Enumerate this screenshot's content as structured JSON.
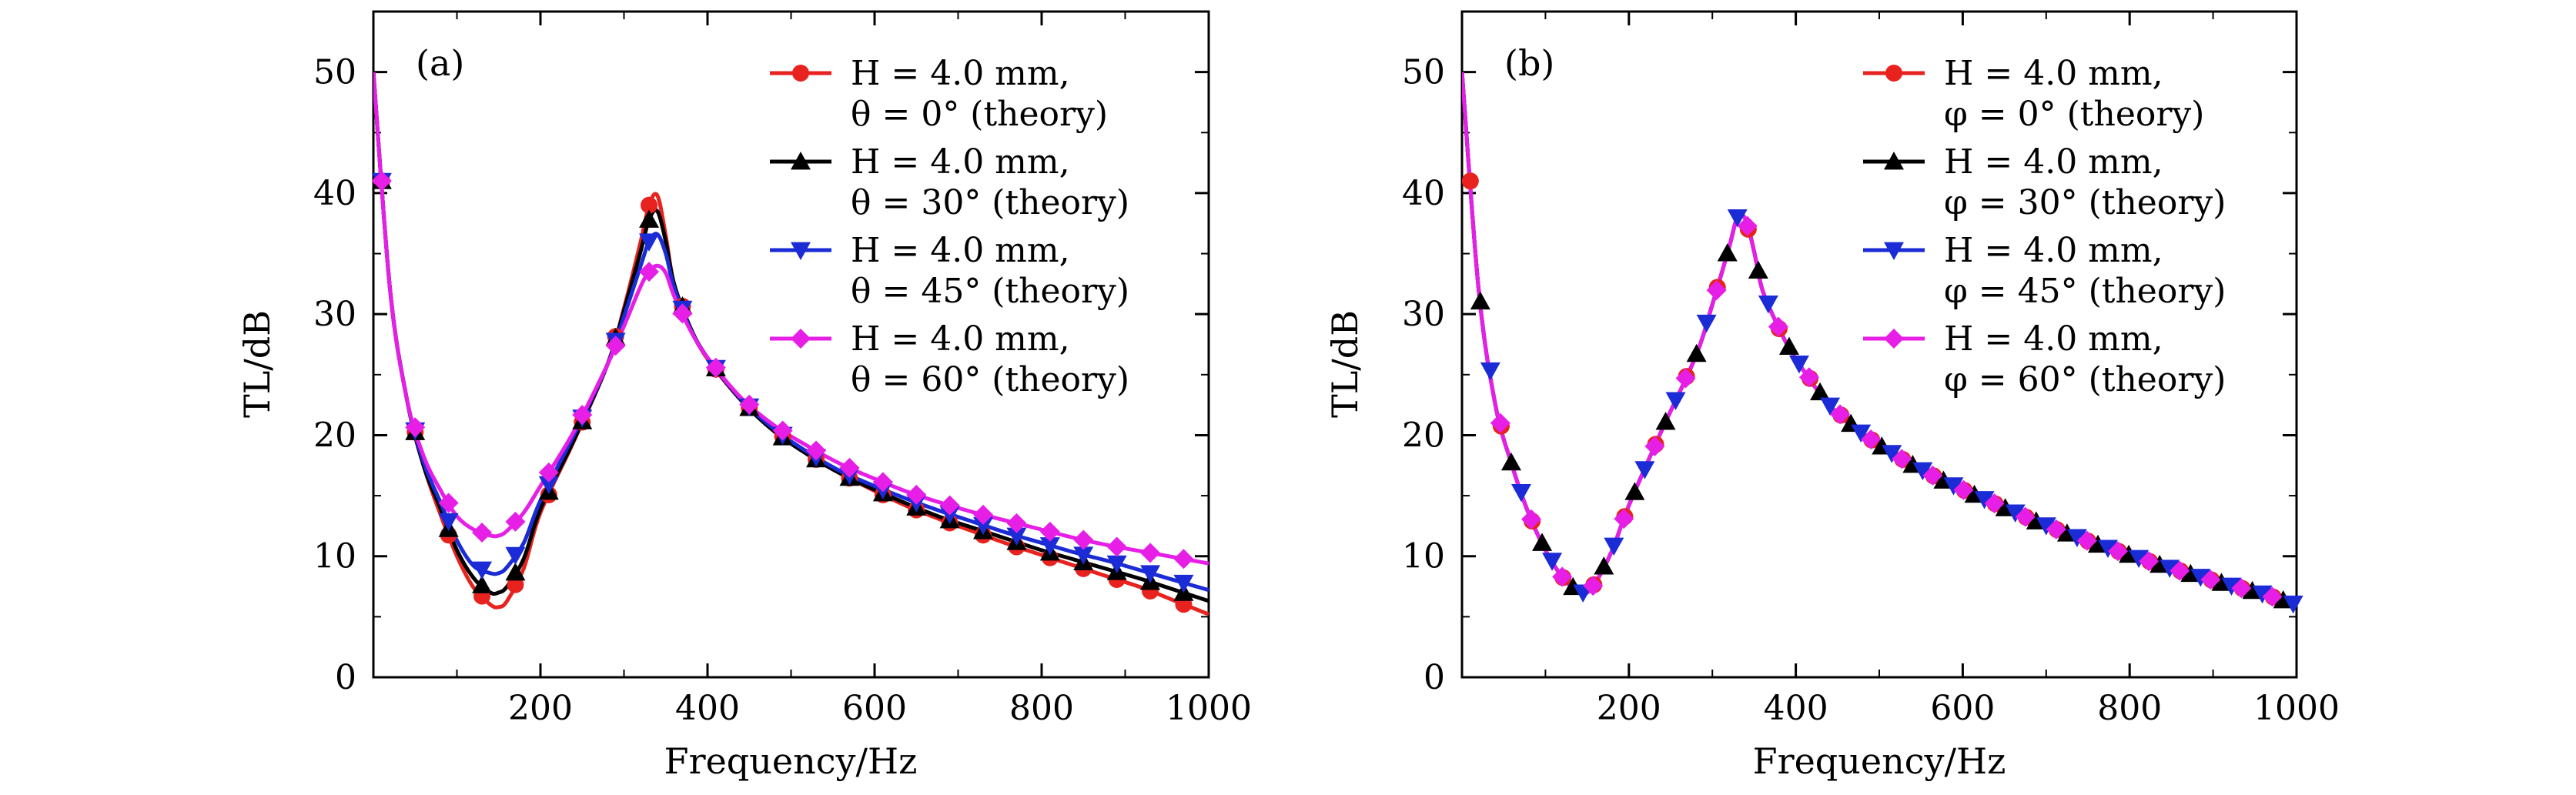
{
  "chart_data": [
    {
      "type": "line",
      "panel_label": "(a)",
      "xlabel": "Frequency/Hz",
      "ylabel": "TL/dB",
      "xlim": [
        0,
        1000
      ],
      "ylim": [
        0,
        55
      ],
      "xticks": [
        200,
        400,
        600,
        800,
        1000
      ],
      "yticks": [
        0,
        10,
        20,
        30,
        40,
        50
      ],
      "grid": false,
      "legend_position": "top-right",
      "series": [
        {
          "name_line1": "H = 4.0 mm,",
          "name_line2": "θ = 0° (theory)",
          "color": "#e8221e",
          "marker": "circle",
          "x": [
            0,
            20,
            40,
            60,
            80,
            100,
            120,
            140,
            150,
            160,
            180,
            200,
            240,
            280,
            300,
            320,
            330,
            340,
            350,
            360,
            380,
            400,
            440,
            480,
            520,
            560,
            600,
            640,
            680,
            720,
            760,
            800,
            840,
            880,
            920,
            960,
            1000
          ],
          "y": [
            50,
            32,
            23,
            17.5,
            13.5,
            10,
            7.4,
            6.0,
            5.8,
            6.3,
            9.0,
            13.6,
            19.5,
            25.8,
            30.5,
            36,
            39,
            39.8,
            36.5,
            32.5,
            28.8,
            26.3,
            22.9,
            20.4,
            18.4,
            16.8,
            15.4,
            14.1,
            13.0,
            12.0,
            11.0,
            10.1,
            9.2,
            8.3,
            7.4,
            6.3,
            5.2
          ]
        },
        {
          "name_line1": "H = 4.0 mm,",
          "name_line2": "θ = 30° (theory)",
          "color": "#000000",
          "marker": "triangle-up",
          "x": [
            0,
            20,
            40,
            60,
            80,
            100,
            120,
            140,
            150,
            160,
            180,
            200,
            240,
            280,
            300,
            320,
            330,
            340,
            350,
            360,
            380,
            400,
            440,
            480,
            520,
            560,
            600,
            640,
            680,
            720,
            760,
            800,
            840,
            880,
            920,
            960,
            1000
          ],
          "y": [
            50,
            32,
            23,
            17.5,
            14,
            10.5,
            8.2,
            7.0,
            7.0,
            7.5,
            9.8,
            13.9,
            19.6,
            25.8,
            30.3,
            35.2,
            37.8,
            38.5,
            36,
            32.5,
            28.8,
            26.4,
            22.9,
            20.3,
            18.4,
            16.8,
            15.5,
            14.3,
            13.2,
            12.3,
            11.4,
            10.5,
            9.7,
            8.9,
            8.1,
            7.2,
            6.3
          ]
        },
        {
          "name_line1": "H = 4.0 mm,",
          "name_line2": "θ = 45° (theory)",
          "color": "#1b2bd6",
          "marker": "triangle-down",
          "x": [
            0,
            20,
            40,
            60,
            80,
            100,
            120,
            140,
            150,
            160,
            180,
            200,
            240,
            280,
            300,
            320,
            330,
            340,
            350,
            360,
            380,
            400,
            440,
            480,
            520,
            560,
            600,
            640,
            680,
            720,
            760,
            800,
            840,
            880,
            920,
            960,
            1000
          ],
          "y": [
            50,
            32,
            23,
            17.8,
            14.5,
            11.3,
            9.2,
            8.6,
            8.6,
            9.1,
            11.1,
            14.6,
            20.0,
            25.8,
            29.8,
            34,
            36,
            36.6,
            35,
            32.2,
            28.7,
            26.4,
            23.0,
            20.5,
            18.6,
            17.0,
            15.8,
            14.7,
            13.7,
            12.8,
            11.9,
            11.1,
            10.3,
            9.6,
            8.8,
            8.0,
            7.2
          ]
        },
        {
          "name_line1": "H = 4.0 mm,",
          "name_line2": "θ = 60° (theory)",
          "color": "#e61ee6",
          "marker": "diamond",
          "x": [
            0,
            20,
            40,
            60,
            80,
            100,
            120,
            140,
            150,
            160,
            180,
            200,
            240,
            280,
            300,
            320,
            330,
            340,
            350,
            360,
            380,
            400,
            440,
            480,
            520,
            560,
            600,
            640,
            680,
            720,
            760,
            800,
            840,
            880,
            920,
            960,
            1000
          ],
          "y": [
            50,
            32,
            23,
            18.3,
            15.5,
            13.3,
            12.2,
            11.7,
            11.7,
            12.1,
            13.6,
            15.8,
            20.3,
            25.8,
            29.0,
            32.3,
            33.5,
            34.0,
            33.4,
            31.5,
            28.6,
            26.4,
            23.1,
            20.8,
            19.1,
            17.6,
            16.4,
            15.3,
            14.4,
            13.6,
            12.9,
            12.2,
            11.5,
            10.9,
            10.4,
            9.9,
            9.4
          ]
        }
      ]
    },
    {
      "type": "line",
      "panel_label": "(b)",
      "xlabel": "Frequency/Hz",
      "ylabel": "TL/dB",
      "xlim": [
        0,
        1000
      ],
      "ylim": [
        0,
        55
      ],
      "xticks": [
        200,
        400,
        600,
        800,
        1000
      ],
      "yticks": [
        0,
        10,
        20,
        30,
        40,
        50
      ],
      "grid": false,
      "legend_position": "top-right",
      "series": [
        {
          "name_line1": "H = 4.0 mm,",
          "name_line2": "φ = 0° (theory)",
          "color": "#e8221e",
          "marker": "circle",
          "x": [
            0,
            20,
            40,
            60,
            80,
            100,
            120,
            140,
            150,
            160,
            180,
            200,
            240,
            280,
            300,
            320,
            330,
            340,
            350,
            360,
            380,
            400,
            440,
            480,
            520,
            560,
            600,
            640,
            680,
            720,
            760,
            800,
            840,
            880,
            920,
            960,
            1000
          ],
          "y": [
            50,
            32,
            22.5,
            17.5,
            13.5,
            10.5,
            8.3,
            7.0,
            7.0,
            7.8,
            10.5,
            14.2,
            20.5,
            26.5,
            30.8,
            35.5,
            38,
            37.8,
            35.2,
            32,
            28.8,
            26.3,
            22.5,
            20.1,
            18.3,
            16.8,
            15.5,
            14.3,
            13.1,
            12.0,
            11.0,
            10.1,
            9.2,
            8.4,
            7.6,
            6.9,
            6.0
          ]
        },
        {
          "name_line1": "H = 4.0 mm,",
          "name_line2": "φ = 30° (theory)",
          "color": "#000000",
          "marker": "triangle-up",
          "x": [
            0,
            20,
            40,
            60,
            80,
            100,
            120,
            140,
            150,
            160,
            180,
            200,
            240,
            280,
            300,
            320,
            330,
            340,
            350,
            360,
            380,
            400,
            440,
            480,
            520,
            560,
            600,
            640,
            680,
            720,
            760,
            800,
            840,
            880,
            920,
            960,
            1000
          ],
          "y": [
            50,
            32,
            22.5,
            17.5,
            13.5,
            10.5,
            8.3,
            7.0,
            7.0,
            7.8,
            10.5,
            14.2,
            20.5,
            26.5,
            30.8,
            35.5,
            38,
            37.8,
            35.2,
            32,
            28.8,
            26.3,
            22.5,
            20.1,
            18.3,
            16.8,
            15.5,
            14.3,
            13.1,
            12.0,
            11.0,
            10.1,
            9.2,
            8.4,
            7.6,
            6.9,
            6.0
          ]
        },
        {
          "name_line1": "H = 4.0 mm,",
          "name_line2": "φ = 45° (theory)",
          "color": "#1b2bd6",
          "marker": "triangle-down",
          "x": [
            0,
            20,
            40,
            60,
            80,
            100,
            120,
            140,
            150,
            160,
            180,
            200,
            240,
            280,
            300,
            320,
            330,
            340,
            350,
            360,
            380,
            400,
            440,
            480,
            520,
            560,
            600,
            640,
            680,
            720,
            760,
            800,
            840,
            880,
            920,
            960,
            1000
          ],
          "y": [
            50,
            32,
            22.5,
            17.5,
            13.5,
            10.5,
            8.3,
            7.0,
            7.0,
            7.8,
            10.5,
            14.2,
            20.5,
            26.5,
            30.8,
            35.5,
            38,
            37.8,
            35.2,
            32,
            28.8,
            26.3,
            22.5,
            20.1,
            18.3,
            16.8,
            15.5,
            14.3,
            13.1,
            12.0,
            11.0,
            10.1,
            9.2,
            8.4,
            7.6,
            6.9,
            6.0
          ]
        },
        {
          "name_line1": "H = 4.0 mm,",
          "name_line2": "φ = 60° (theory)",
          "color": "#e61ee6",
          "marker": "diamond",
          "x": [
            0,
            20,
            40,
            60,
            80,
            100,
            120,
            140,
            150,
            160,
            180,
            200,
            240,
            280,
            300,
            320,
            330,
            340,
            350,
            360,
            380,
            400,
            440,
            480,
            520,
            560,
            600,
            640,
            680,
            720,
            760,
            800,
            840,
            880,
            920,
            960,
            1000
          ],
          "y": [
            50,
            32,
            22.5,
            17.5,
            13.5,
            10.5,
            8.3,
            7.0,
            7.0,
            7.8,
            10.5,
            14.2,
            20.5,
            26.5,
            30.8,
            35.5,
            38,
            37.8,
            35.2,
            32,
            28.8,
            26.3,
            22.5,
            20.1,
            18.3,
            16.8,
            15.5,
            14.3,
            13.1,
            12.0,
            11.0,
            10.1,
            9.2,
            8.4,
            7.6,
            6.9,
            6.0
          ]
        }
      ]
    }
  ]
}
